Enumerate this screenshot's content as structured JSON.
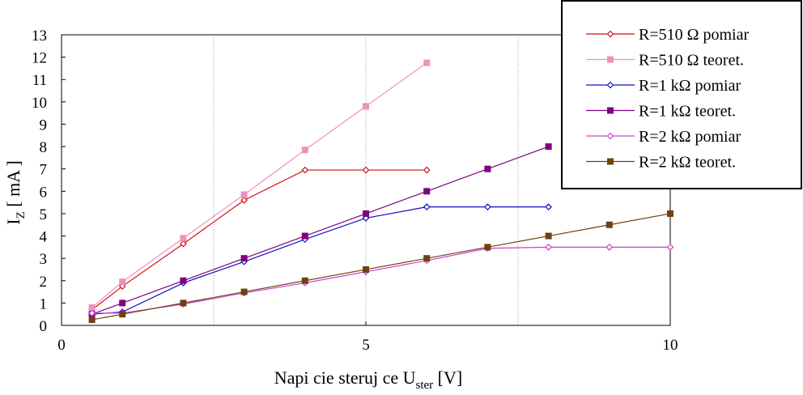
{
  "chart_data": {
    "type": "line",
    "title": "",
    "xlabel": "Napi  cie steruj  ce U",
    "xlabel_sub": "ster",
    "xlabel_unit": "  [V]",
    "ylabel": "I",
    "ylabel_sub": "Z",
    "ylabel_unit": "  [ mA ]",
    "xlim": [
      0,
      10
    ],
    "ylim": [
      0,
      13
    ],
    "xticks": [
      "0",
      "5",
      "10"
    ],
    "yticks": [
      "0",
      "1",
      "2",
      "3",
      "4",
      "5",
      "6",
      "7",
      "8",
      "9",
      "10",
      "11",
      "12",
      "13"
    ],
    "grid": "vertical dotted at x = 2.5, 5, 7.5",
    "legend_position": "top-right",
    "series": [
      {
        "name": "R=510 Ω pomiar",
        "color": "#d01010",
        "marker": "diamond-open",
        "x": [
          0.5,
          1,
          2,
          3,
          4,
          5,
          6
        ],
        "y": [
          0.7,
          1.75,
          3.65,
          5.6,
          6.95,
          6.95,
          6.95
        ]
      },
      {
        "name": "R=510 Ω teoret.",
        "color": "#f090c0",
        "marker": "square",
        "x": [
          0.5,
          1,
          2,
          3,
          4,
          5,
          6
        ],
        "y": [
          0.8,
          1.95,
          3.9,
          5.85,
          7.85,
          9.8,
          11.75
        ]
      },
      {
        "name": "R=1 kΩ pomiar",
        "color": "#1010c0",
        "marker": "diamond-open",
        "x": [
          0.5,
          1,
          2,
          3,
          4,
          5,
          6,
          7,
          8
        ],
        "y": [
          0.5,
          0.6,
          1.9,
          2.85,
          3.85,
          4.8,
          5.3,
          5.3,
          5.3
        ]
      },
      {
        "name": "R=1 kΩ teoret.",
        "color": "#800080",
        "marker": "square",
        "x": [
          0.5,
          1,
          2,
          3,
          4,
          5,
          6,
          7,
          8
        ],
        "y": [
          0.5,
          1.0,
          2.0,
          3.0,
          4.0,
          5.0,
          6.0,
          7.0,
          8.0
        ]
      },
      {
        "name": "R=2 kΩ pomiar",
        "color": "#d040d0",
        "marker": "diamond-open",
        "x": [
          0.5,
          1,
          2,
          3,
          4,
          5,
          6,
          7,
          8,
          9,
          10
        ],
        "y": [
          0.55,
          0.55,
          0.95,
          1.45,
          1.9,
          2.4,
          2.9,
          3.45,
          3.5,
          3.5,
          3.5
        ]
      },
      {
        "name": "R=2 kΩ teoret.",
        "color": "#704010",
        "marker": "square",
        "x": [
          0.5,
          1,
          2,
          3,
          4,
          5,
          6,
          7,
          8,
          9,
          10
        ],
        "y": [
          0.25,
          0.5,
          1.0,
          1.5,
          2.0,
          2.5,
          3.0,
          3.5,
          4.0,
          4.5,
          5.0
        ]
      }
    ]
  }
}
